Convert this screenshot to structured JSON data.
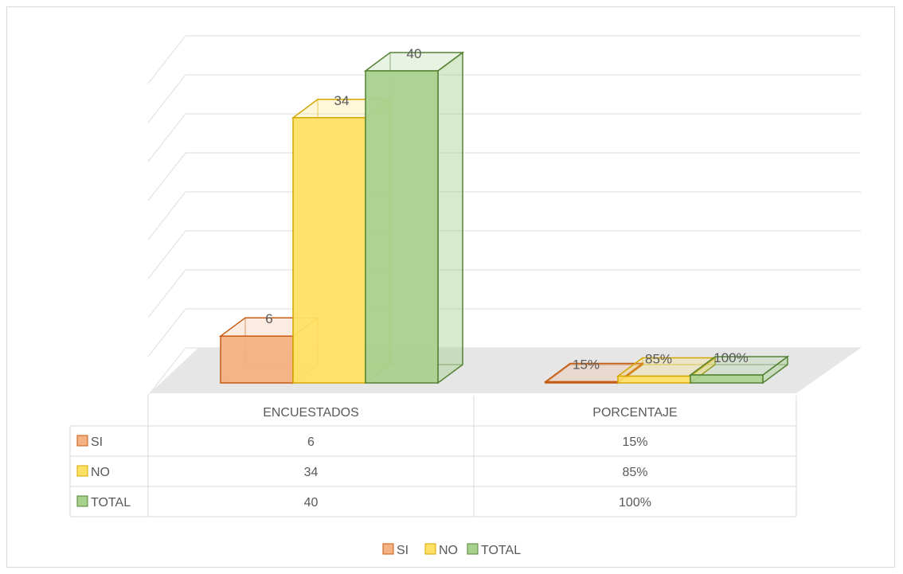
{
  "chart_data": {
    "type": "bar",
    "categories": [
      "ENCUESTADOS",
      "PORCENTAJE"
    ],
    "series": [
      {
        "name": "SI",
        "values": [
          6,
          0.15
        ],
        "labels": [
          "6",
          "15%"
        ],
        "color": "#f4b183",
        "stroke": "#c55a11"
      },
      {
        "name": "NO",
        "values": [
          34,
          0.85
        ],
        "labels": [
          "34",
          "85%"
        ],
        "color": "#ffe066",
        "stroke": "#d4a800"
      },
      {
        "name": "TOTAL",
        "values": [
          40,
          1
        ],
        "labels": [
          "40",
          "100%"
        ],
        "color": "#a9d18e",
        "stroke": "#548235"
      }
    ],
    "ylim": [
      0,
      40
    ],
    "grid": true,
    "legend": "bottom",
    "data_table": true
  }
}
